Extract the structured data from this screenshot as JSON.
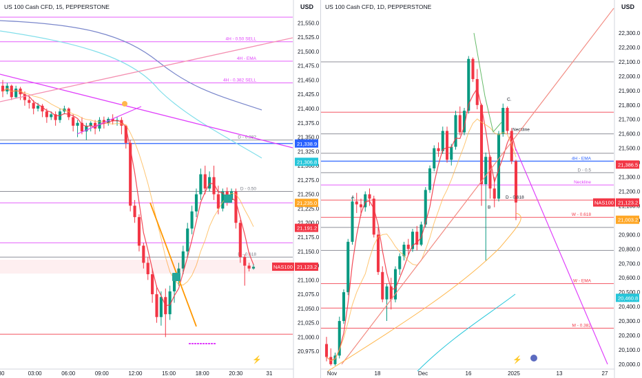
{
  "left": {
    "title": "US 100 Cash CFD, 15, PEPPERSTONE",
    "currency": "USD",
    "chart_data": {
      "type": "candlestick",
      "timeframe": "15",
      "ylim": [
        20950,
        21560
      ],
      "y_ticks": [
        "21,550.0",
        "21,525.0",
        "21,500.0",
        "21,475.0",
        "21,450.0",
        "21,425.0",
        "21,400.0",
        "21,375.0",
        "21,350.0",
        "21,325.0",
        "21,300.0",
        "21,275.0",
        "21,250.0",
        "21,225.0",
        "21,200.0",
        "21,175.0",
        "21,150.0",
        "21,125.0",
        "21,100.0",
        "21,075.0",
        "21,050.0",
        "21,025.0",
        "21,000.0",
        "20,975.0"
      ],
      "x_ticks": [
        "30",
        "03:00",
        "06:00",
        "09:00",
        "12:00",
        "15:00",
        "18:00",
        "20:30",
        "31"
      ],
      "price_tags": [
        {
          "label": "21,338.9",
          "value": 21338.9,
          "color": "#2962ff"
        },
        {
          "label": "21,306.8",
          "value": 21306.8,
          "color": "#26c6da"
        },
        {
          "label": "21,235.0",
          "value": 21235.0,
          "color": "#ffa726"
        },
        {
          "label": "21,191.2",
          "value": 21191.2,
          "color": "#f23645"
        },
        {
          "label": "21,123.2",
          "value": 21123.2,
          "color": "#f23645",
          "symbol": "NAS100"
        }
      ],
      "hlines": [
        {
          "value": 21560,
          "color": "#e040fb"
        },
        {
          "value": 21517,
          "color": "#e040fb",
          "label": "4H - 0.50 SELL"
        },
        {
          "value": 21483,
          "color": "#e040fb",
          "label": "4H - EMA"
        },
        {
          "value": 21445,
          "color": "#e040fb",
          "label": "4H - 0.382 SELL"
        },
        {
          "value": 21345,
          "color": "#787b86",
          "label": "D - 0.382"
        },
        {
          "value": 21338.9,
          "color": "#2962ff"
        },
        {
          "value": 21255,
          "color": "#787b86",
          "label": "D - 0.50"
        },
        {
          "value": 21235,
          "color": "#e040fb"
        },
        {
          "value": 21165,
          "color": "#e040fb"
        },
        {
          "value": 21140,
          "color": "#787b86",
          "label": "D - 0.618"
        },
        {
          "value": 21005,
          "color": "#f23645"
        }
      ],
      "candles": [
        {
          "o": 21440,
          "h": 21450,
          "c": 21430,
          "l": 21420
        },
        {
          "o": 21430,
          "h": 21445,
          "c": 21440,
          "l": 21425
        },
        {
          "o": 21440,
          "h": 21442,
          "c": 21420,
          "l": 21415
        },
        {
          "o": 21420,
          "h": 21440,
          "c": 21435,
          "l": 21418
        },
        {
          "o": 21435,
          "h": 21438,
          "c": 21425,
          "l": 21415
        },
        {
          "o": 21425,
          "h": 21430,
          "c": 21415,
          "l": 21405
        },
        {
          "o": 21415,
          "h": 21420,
          "c": 21410,
          "l": 21400
        },
        {
          "o": 21410,
          "h": 21415,
          "c": 21400,
          "l": 21390
        },
        {
          "o": 21400,
          "h": 21410,
          "c": 21405,
          "l": 21395
        },
        {
          "o": 21405,
          "h": 21408,
          "c": 21395,
          "l": 21385
        },
        {
          "o": 21395,
          "h": 21400,
          "c": 21385,
          "l": 21375
        },
        {
          "o": 21385,
          "h": 21395,
          "c": 21390,
          "l": 21380
        },
        {
          "o": 21390,
          "h": 21395,
          "c": 21380,
          "l": 21370
        },
        {
          "o": 21380,
          "h": 21400,
          "c": 21395,
          "l": 21375
        },
        {
          "o": 21395,
          "h": 21405,
          "c": 21400,
          "l": 21390
        },
        {
          "o": 21400,
          "h": 21402,
          "c": 21385,
          "l": 21380
        },
        {
          "o": 21385,
          "h": 21390,
          "c": 21370,
          "l": 21360
        },
        {
          "o": 21370,
          "h": 21380,
          "c": 21375,
          "l": 21350
        },
        {
          "o": 21375,
          "h": 21385,
          "c": 21360,
          "l": 21355
        },
        {
          "o": 21360,
          "h": 21375,
          "c": 21370,
          "l": 21345
        },
        {
          "o": 21370,
          "h": 21378,
          "c": 21375,
          "l": 21360
        },
        {
          "o": 21375,
          "h": 21380,
          "c": 21365,
          "l": 21355
        },
        {
          "o": 21365,
          "h": 21385,
          "c": 21380,
          "l": 21360
        },
        {
          "o": 21380,
          "h": 21386,
          "c": 21375,
          "l": 21365
        },
        {
          "o": 21375,
          "h": 21385,
          "c": 21382,
          "l": 21370
        },
        {
          "o": 21382,
          "h": 21390,
          "c": 21378,
          "l": 21372
        },
        {
          "o": 21378,
          "h": 21385,
          "c": 21380,
          "l": 21370
        },
        {
          "o": 21380,
          "h": 21385,
          "c": 21370,
          "l": 21355
        },
        {
          "o": 21370,
          "h": 21372,
          "c": 21340,
          "l": 21330
        },
        {
          "o": 21340,
          "h": 21345,
          "c": 21230,
          "l": 21220
        },
        {
          "o": 21230,
          "h": 21240,
          "c": 21210,
          "l": 21200
        },
        {
          "o": 21210,
          "h": 21215,
          "c": 21160,
          "l": 21150
        },
        {
          "o": 21160,
          "h": 21165,
          "c": 21130,
          "l": 21120
        },
        {
          "o": 21130,
          "h": 21140,
          "c": 21110,
          "l": 21100
        },
        {
          "o": 21110,
          "h": 21120,
          "c": 21075,
          "l": 21060
        },
        {
          "o": 21075,
          "h": 21090,
          "c": 21035,
          "l": 21025
        },
        {
          "o": 21035,
          "h": 21080,
          "c": 21070,
          "l": 21020
        },
        {
          "o": 21070,
          "h": 21085,
          "c": 21040,
          "l": 21000
        },
        {
          "o": 21040,
          "h": 21090,
          "c": 21080,
          "l": 21030
        },
        {
          "o": 21080,
          "h": 21110,
          "c": 21100,
          "l": 21060
        },
        {
          "o": 21100,
          "h": 21130,
          "c": 21120,
          "l": 21090
        },
        {
          "o": 21120,
          "h": 21160,
          "c": 21150,
          "l": 21110
        },
        {
          "o": 21150,
          "h": 21200,
          "c": 21190,
          "l": 21140
        },
        {
          "o": 21190,
          "h": 21230,
          "c": 21220,
          "l": 21180
        },
        {
          "o": 21220,
          "h": 21260,
          "c": 21250,
          "l": 21210
        },
        {
          "o": 21250,
          "h": 21295,
          "c": 21285,
          "l": 21240
        },
        {
          "o": 21285,
          "h": 21300,
          "c": 21260,
          "l": 21250
        },
        {
          "o": 21260,
          "h": 21290,
          "c": 21280,
          "l": 21255
        },
        {
          "o": 21280,
          "h": 21300,
          "c": 21250,
          "l": 21240
        },
        {
          "o": 21250,
          "h": 21265,
          "c": 21225,
          "l": 21215
        },
        {
          "o": 21225,
          "h": 21260,
          "c": 21255,
          "l": 21220
        },
        {
          "o": 21255,
          "h": 21262,
          "c": 21240,
          "l": 21230
        },
        {
          "o": 21240,
          "h": 21260,
          "c": 21255,
          "l": 21235
        },
        {
          "o": 21255,
          "h": 21260,
          "c": 21200,
          "l": 21190
        },
        {
          "o": 21200,
          "h": 21205,
          "c": 21140,
          "l": 21130
        },
        {
          "o": 21140,
          "h": 21145,
          "c": 21125,
          "l": 21090
        },
        {
          "o": 21125,
          "h": 21130,
          "c": 21120,
          "l": 21115
        },
        {
          "o": 21120,
          "h": 21128,
          "c": 21123,
          "l": 21118
        }
      ]
    }
  },
  "right": {
    "title": "US 100 Cash CFD, 1D, PEPPERSTONE",
    "currency": "USD",
    "chart_data": {
      "type": "candlestick",
      "timeframe": "1D",
      "ylim": [
        19990,
        22410
      ],
      "y_ticks": [
        "22,300.0",
        "22,200.0",
        "22,100.0",
        "22,000.0",
        "21,900.0",
        "21,800.0",
        "21,700.0",
        "21,600.0",
        "21,500.0",
        "21,400.0",
        "21,300.0",
        "21,200.0",
        "21,100.0",
        "21,000.0",
        "20,900.0",
        "20,800.0",
        "20,700.0",
        "20,600.0",
        "20,500.0",
        "20,400.0",
        "20,300.0",
        "20,200.0",
        "20,100.0",
        "20,000.0"
      ],
      "x_ticks": [
        "Nov",
        "18",
        "Dec",
        "16",
        "2025",
        "13",
        "27"
      ],
      "price_tags": [
        {
          "label": "21,386.5",
          "value": 21386.5,
          "color": "#f23645"
        },
        {
          "label": "21,123.2",
          "value": 21123.2,
          "color": "#f23645",
          "symbol": "NAS100"
        },
        {
          "label": "21,003.2",
          "value": 21003.2,
          "color": "#ffa726"
        },
        {
          "label": "20,460.8",
          "value": 20460.8,
          "color": "#26c6da"
        }
      ],
      "hlines": [
        {
          "value": 22100,
          "color": "#787b86"
        },
        {
          "value": 21750,
          "color": "#f23645"
        },
        {
          "value": 21600,
          "color": "#787b86"
        },
        {
          "value": 21465,
          "color": "#787b86"
        },
        {
          "value": 21410,
          "color": "#2962ff",
          "label": "4H - EMA"
        },
        {
          "value": 21330,
          "color": "#787b86",
          "label": "D - 0.5"
        },
        {
          "value": 21245,
          "color": "#e040fb",
          "label": "Neckline"
        },
        {
          "value": 21140,
          "color": "#f23645"
        },
        {
          "value": 21020,
          "color": "#f23645",
          "label": "W - 0.618"
        },
        {
          "value": 20950,
          "color": "#787b86"
        },
        {
          "value": 20790,
          "color": "#787b86"
        },
        {
          "value": 20560,
          "color": "#f23645",
          "label": "W - EMA"
        },
        {
          "value": 20390,
          "color": "#f23645"
        },
        {
          "value": 20250,
          "color": "#f23645",
          "label": "M - 0.382"
        }
      ],
      "labels": [
        {
          "text": "C.",
          "price": 21830
        },
        {
          "text": "Neckline",
          "price": 21620
        },
        {
          "text": "D - 0.618",
          "price": 21150
        },
        {
          "text": "A",
          "price": 21150
        },
        {
          "text": "B",
          "price": 21080
        }
      ],
      "candles": [
        {
          "o": 20140,
          "h": 20190,
          "c": 20050,
          "l": 20020
        },
        {
          "o": 20050,
          "h": 20110,
          "c": 20000,
          "l": 19990
        },
        {
          "o": 20000,
          "h": 20080,
          "c": 20060,
          "l": 19990
        },
        {
          "o": 20060,
          "h": 20330,
          "c": 20300,
          "l": 20040
        },
        {
          "o": 20300,
          "h": 20520,
          "c": 20500,
          "l": 20280
        },
        {
          "o": 20500,
          "h": 20870,
          "c": 20850,
          "l": 20480
        },
        {
          "o": 20850,
          "h": 21160,
          "c": 21130,
          "l": 20830
        },
        {
          "o": 21130,
          "h": 21190,
          "c": 21110,
          "l": 21050
        },
        {
          "o": 21110,
          "h": 21150,
          "c": 21090,
          "l": 21030
        },
        {
          "o": 21090,
          "h": 21200,
          "c": 21180,
          "l": 21060
        },
        {
          "o": 21180,
          "h": 21220,
          "c": 21150,
          "l": 21100
        },
        {
          "o": 21150,
          "h": 21170,
          "c": 20900,
          "l": 20880
        },
        {
          "o": 20900,
          "h": 20950,
          "c": 20640,
          "l": 20620
        },
        {
          "o": 20640,
          "h": 20680,
          "c": 20450,
          "l": 20430
        },
        {
          "o": 20450,
          "h": 20560,
          "c": 20540,
          "l": 20300
        },
        {
          "o": 20540,
          "h": 20600,
          "c": 20450,
          "l": 20380
        },
        {
          "o": 20450,
          "h": 20680,
          "c": 20660,
          "l": 20430
        },
        {
          "o": 20660,
          "h": 20770,
          "c": 20750,
          "l": 20620
        },
        {
          "o": 20750,
          "h": 20850,
          "c": 20830,
          "l": 20720
        },
        {
          "o": 20830,
          "h": 20870,
          "c": 20800,
          "l": 20760
        },
        {
          "o": 20800,
          "h": 20940,
          "c": 20920,
          "l": 20780
        },
        {
          "o": 20920,
          "h": 20960,
          "c": 20830,
          "l": 20790
        },
        {
          "o": 20830,
          "h": 20990,
          "c": 20970,
          "l": 20820
        },
        {
          "o": 20970,
          "h": 21230,
          "c": 21210,
          "l": 20950
        },
        {
          "o": 21210,
          "h": 21380,
          "c": 21360,
          "l": 21190
        },
        {
          "o": 21360,
          "h": 21520,
          "c": 21500,
          "l": 21340
        },
        {
          "o": 21500,
          "h": 21540,
          "c": 21480,
          "l": 21440
        },
        {
          "o": 21480,
          "h": 21650,
          "c": 21620,
          "l": 21460
        },
        {
          "o": 21620,
          "h": 21650,
          "c": 21420,
          "l": 21400
        },
        {
          "o": 21420,
          "h": 21530,
          "c": 21510,
          "l": 21380
        },
        {
          "o": 21510,
          "h": 21760,
          "c": 21730,
          "l": 21490
        },
        {
          "o": 21730,
          "h": 21790,
          "c": 21610,
          "l": 21590
        },
        {
          "o": 21610,
          "h": 21780,
          "c": 21760,
          "l": 21590
        },
        {
          "o": 21760,
          "h": 22140,
          "c": 22120,
          "l": 21740
        },
        {
          "o": 22120,
          "h": 22130,
          "c": 21980,
          "l": 21960
        },
        {
          "o": 21980,
          "h": 22050,
          "c": 21800,
          "l": 21770
        },
        {
          "o": 21800,
          "h": 21810,
          "c": 21250,
          "l": 21100
        },
        {
          "o": 21250,
          "h": 21470,
          "c": 21440,
          "l": 20720
        },
        {
          "o": 21440,
          "h": 21450,
          "c": 21220,
          "l": 21150
        },
        {
          "o": 21220,
          "h": 21300,
          "c": 21150,
          "l": 21090
        },
        {
          "o": 21150,
          "h": 21620,
          "c": 21600,
          "l": 21130
        },
        {
          "o": 21600,
          "h": 21810,
          "c": 21780,
          "l": 21580
        },
        {
          "o": 21780,
          "h": 21790,
          "c": 21620,
          "l": 21600
        },
        {
          "o": 21620,
          "h": 21640,
          "c": 21410,
          "l": 21390
        },
        {
          "o": 21410,
          "h": 21420,
          "c": 21123,
          "l": 21000
        }
      ]
    }
  }
}
